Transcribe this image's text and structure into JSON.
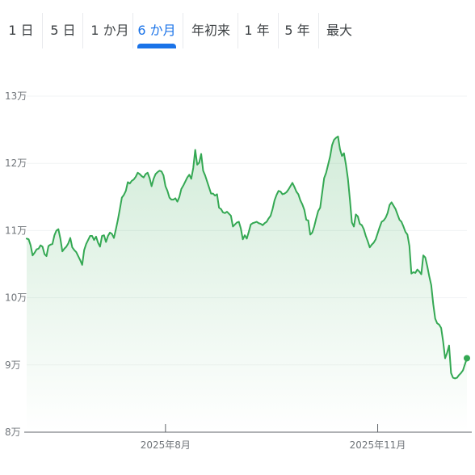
{
  "range_tabs": [
    {
      "label": "1 日",
      "active": false
    },
    {
      "label": "5 日",
      "active": false
    },
    {
      "label": "1 か月",
      "active": false
    },
    {
      "label": "6 か月",
      "active": true
    },
    {
      "label": "年初来",
      "active": false
    },
    {
      "label": "1 年",
      "active": false
    },
    {
      "label": "5 年",
      "active": false
    },
    {
      "label": "最大",
      "active": false
    }
  ],
  "colors": {
    "line": "#34a853",
    "fill_top": "#34a853",
    "active_tab": "#1a73e8",
    "grid": "#f1f3f4",
    "axis": "#5f6368"
  },
  "chart_data": {
    "type": "area",
    "title": "",
    "xlabel": "",
    "ylabel": "",
    "ylim": [
      80000,
      130000
    ],
    "y_ticks": [
      {
        "value": 130000,
        "label": "13万"
      },
      {
        "value": 120000,
        "label": "12万"
      },
      {
        "value": 110000,
        "label": "11万"
      },
      {
        "value": 100000,
        "label": "10万"
      },
      {
        "value": 90000,
        "label": "9万"
      },
      {
        "value": 80000,
        "label": "8万"
      }
    ],
    "x_ticks": [
      {
        "index": 70,
        "label": "2025年8月"
      },
      {
        "index": 177,
        "label": "2025年11月"
      }
    ],
    "grid": true,
    "values": [
      108800,
      108700,
      107800,
      106300,
      106700,
      107200,
      107300,
      107800,
      107600,
      106500,
      106200,
      107700,
      107900,
      108000,
      109300,
      110000,
      110200,
      108800,
      106900,
      107300,
      107600,
      108100,
      108900,
      107500,
      107100,
      106800,
      106200,
      105600,
      104900,
      107100,
      108000,
      108600,
      109200,
      109200,
      108600,
      109100,
      108200,
      107600,
      109200,
      109300,
      108300,
      109200,
      109700,
      109500,
      108900,
      110200,
      111600,
      113200,
      114900,
      115300,
      115900,
      117200,
      117000,
      117400,
      117600,
      118000,
      118600,
      118400,
      118100,
      117900,
      118400,
      118600,
      117800,
      116600,
      117700,
      118400,
      118700,
      118900,
      118800,
      118200,
      116600,
      115900,
      114900,
      114600,
      114600,
      114800,
      114300,
      115000,
      116200,
      116700,
      117300,
      117900,
      118300,
      117700,
      119300,
      122000,
      119800,
      120100,
      121400,
      118900,
      118200,
      117300,
      116400,
      115500,
      115500,
      115200,
      115400,
      113400,
      113200,
      112700,
      112600,
      112800,
      112500,
      112200,
      110600,
      110900,
      111200,
      111300,
      110300,
      108700,
      109300,
      108800,
      109800,
      110900,
      111100,
      111200,
      111300,
      111100,
      111000,
      110800,
      111100,
      111300,
      111800,
      112200,
      113200,
      114500,
      115300,
      115900,
      115800,
      115400,
      115500,
      115700,
      116100,
      116600,
      117100,
      116500,
      115800,
      115400,
      114500,
      113900,
      113100,
      111600,
      111500,
      109400,
      109700,
      110600,
      111800,
      112900,
      113400,
      115600,
      117800,
      118600,
      119800,
      121000,
      122700,
      123500,
      123800,
      124000,
      122100,
      121100,
      121500,
      119800,
      117700,
      114600,
      111200,
      110600,
      112400,
      112100,
      111000,
      110800,
      110200,
      109200,
      108400,
      107500,
      107900,
      108200,
      108700,
      109600,
      110500,
      111300,
      111500,
      111900,
      112600,
      113800,
      114200,
      113700,
      113200,
      112400,
      111600,
      111300,
      110600,
      109800,
      109400,
      107700,
      103600,
      103800,
      103700,
      104200,
      103900,
      103500,
      106300,
      106000,
      104700,
      103200,
      101900,
      99100,
      96900,
      96200,
      96000,
      95500,
      93500,
      91000,
      91800,
      92900,
      88800,
      88100,
      88000,
      88100,
      88500,
      88800,
      89200,
      90100,
      91000
    ]
  }
}
